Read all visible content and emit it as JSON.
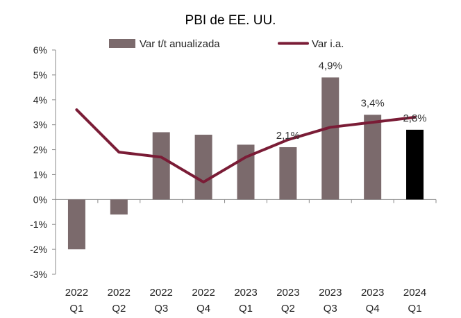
{
  "chart_data": {
    "type": "bar",
    "title": "PBI de EE. UU.",
    "categories": [
      [
        "2022",
        "Q1"
      ],
      [
        "2022",
        "Q2"
      ],
      [
        "2022",
        "Q3"
      ],
      [
        "2022",
        "Q4"
      ],
      [
        "2023",
        "Q1"
      ],
      [
        "2023",
        "Q2"
      ],
      [
        "2023",
        "Q3"
      ],
      [
        "2023",
        "Q4"
      ],
      [
        "2024",
        "Q1"
      ]
    ],
    "series": [
      {
        "name": "Var t/t anualizada",
        "kind": "bar",
        "color": "#7b6a6c",
        "highlight_color": "#000000",
        "highlight_index": 8,
        "values": [
          -2.0,
          -0.6,
          2.7,
          2.6,
          2.2,
          2.1,
          4.9,
          3.4,
          2.8
        ]
      },
      {
        "name": "Var i.a.",
        "kind": "line",
        "color": "#7a1c36",
        "values": [
          3.6,
          1.9,
          1.7,
          0.7,
          1.7,
          2.4,
          2.9,
          3.1,
          3.3
        ]
      }
    ],
    "data_labels": [
      {
        "index": 5,
        "text": "2,1%"
      },
      {
        "index": 6,
        "text": "4,9%"
      },
      {
        "index": 7,
        "text": "3,4%"
      },
      {
        "index": 8,
        "text": "2,8%"
      }
    ],
    "ylim": [
      -3,
      6
    ],
    "yticks": [
      {
        "value": 6,
        "label": "6%"
      },
      {
        "value": 5,
        "label": "5%"
      },
      {
        "value": 4,
        "label": "4%"
      },
      {
        "value": 3,
        "label": "3%"
      },
      {
        "value": 2,
        "label": "2%"
      },
      {
        "value": 1,
        "label": "1%"
      },
      {
        "value": 0,
        "label": "0%"
      },
      {
        "value": -1,
        "label": "-1%"
      },
      {
        "value": -2,
        "label": "-2%"
      },
      {
        "value": -3,
        "label": "-3%"
      }
    ],
    "xlabel": "",
    "ylabel": "",
    "grid": false,
    "legend_position": "top"
  }
}
